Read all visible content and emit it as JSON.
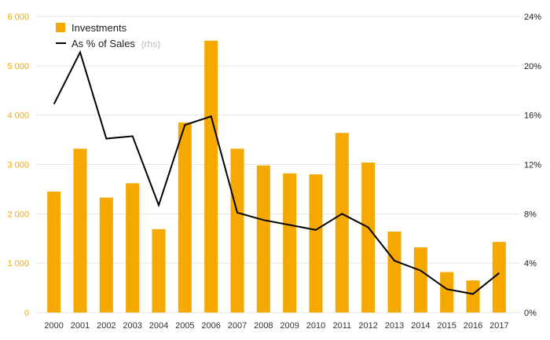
{
  "chart_data": {
    "type": "bar+line",
    "categories": [
      "2000",
      "2001",
      "2002",
      "2003",
      "2004",
      "2005",
      "2006",
      "2007",
      "2008",
      "2009",
      "2010",
      "2011",
      "2012",
      "2013",
      "2014",
      "2015",
      "2016",
      "2017"
    ],
    "series": [
      {
        "name": "Investments",
        "type": "bar",
        "axis": "left",
        "values": [
          2450,
          3320,
          2330,
          2620,
          1690,
          3850,
          5510,
          3320,
          2980,
          2820,
          2800,
          3640,
          3040,
          1640,
          1320,
          820,
          650,
          1430
        ]
      },
      {
        "name": "As % of Sales",
        "name_note": "(rhs)",
        "type": "line",
        "axis": "right",
        "values": [
          16.9,
          21.1,
          14.1,
          14.3,
          8.7,
          15.2,
          15.9,
          8.1,
          7.5,
          7.1,
          6.7,
          8.0,
          6.9,
          4.2,
          3.4,
          1.9,
          1.5,
          3.2
        ]
      }
    ],
    "y_left": {
      "lim": [
        0,
        6000
      ],
      "ticks": [
        0,
        1000,
        2000,
        3000,
        4000,
        5000,
        6000
      ],
      "tick_labels": [
        "0",
        "1 000",
        "2 000",
        "3 000",
        "4 000",
        "5 000",
        "6 000"
      ]
    },
    "y_right": {
      "lim": [
        0,
        24
      ],
      "ticks": [
        0,
        4,
        8,
        12,
        16,
        20,
        24
      ],
      "tick_labels": [
        "0%",
        "4%",
        "8%",
        "12%",
        "16%",
        "20%",
        "24%"
      ]
    },
    "grid": true,
    "legend_position": "top-left",
    "colors": {
      "bar": "#f5a800",
      "line": "#000000",
      "grid": "#e6e6e6",
      "left_ticks": "#f5a800",
      "right_ticks": "#222222"
    }
  }
}
